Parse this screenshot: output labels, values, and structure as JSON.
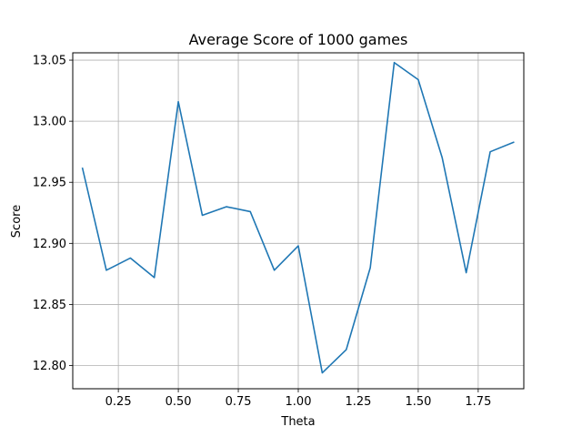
{
  "chart_data": {
    "type": "line",
    "title": "Average Score of 1000 games",
    "xlabel": "Theta",
    "ylabel": "Score",
    "xlim": [
      0.06,
      1.94
    ],
    "ylim": [
      12.781,
      13.056
    ],
    "grid": true,
    "x_ticks": [
      0.25,
      0.5,
      0.75,
      1.0,
      1.25,
      1.5,
      1.75
    ],
    "x_tick_labels": [
      "0.25",
      "0.50",
      "0.75",
      "1.00",
      "1.25",
      "1.50",
      "1.75"
    ],
    "y_ticks": [
      12.8,
      12.85,
      12.9,
      12.95,
      13.0,
      13.05
    ],
    "y_tick_labels": [
      "12.80",
      "12.85",
      "12.90",
      "12.95",
      "13.00",
      "13.05"
    ],
    "series": [
      {
        "color": "#1f77b4",
        "x": [
          0.1,
          0.2,
          0.3,
          0.4,
          0.5,
          0.6,
          0.7,
          0.8,
          0.9,
          1.0,
          1.1,
          1.2,
          1.3,
          1.4,
          1.5,
          1.6,
          1.7,
          1.8,
          1.9
        ],
        "y": [
          12.962,
          12.878,
          12.888,
          12.872,
          13.016,
          12.923,
          12.93,
          12.926,
          12.878,
          12.898,
          12.794,
          12.813,
          12.88,
          13.048,
          13.034,
          12.97,
          12.876,
          12.975,
          12.983
        ]
      }
    ]
  }
}
